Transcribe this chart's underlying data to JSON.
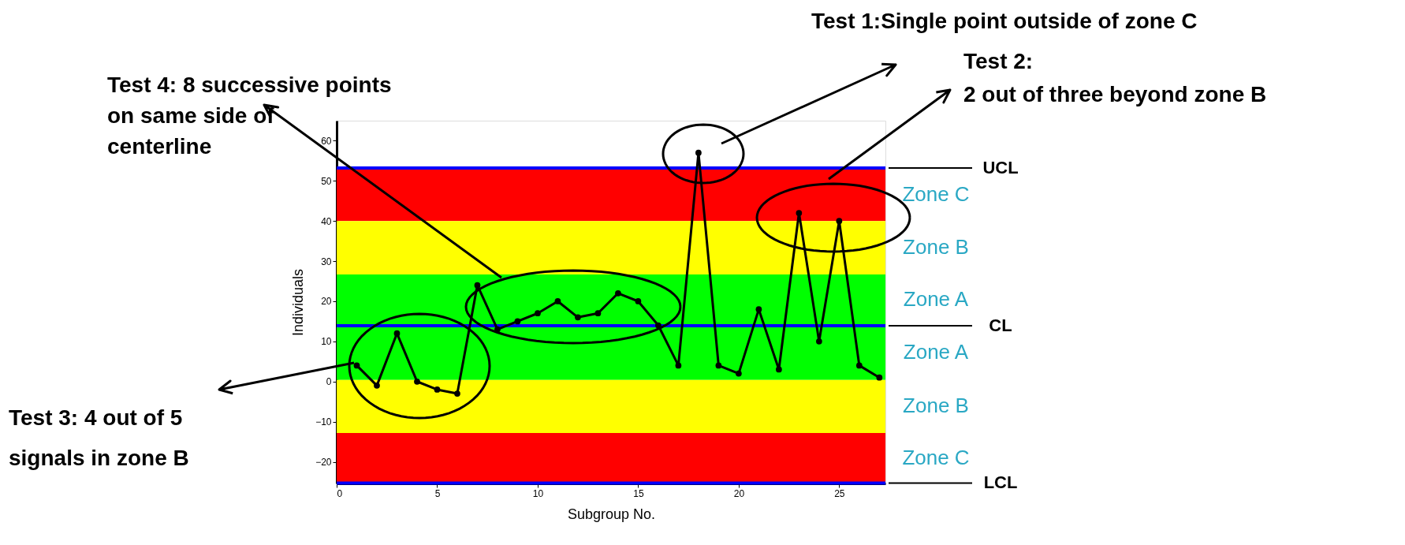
{
  "chart_data": {
    "type": "line",
    "xlabel": "Subgroup No.",
    "ylabel": "Individuals",
    "x": [
      1,
      2,
      3,
      4,
      5,
      6,
      7,
      8,
      9,
      10,
      11,
      12,
      13,
      14,
      15,
      16,
      17,
      18,
      19,
      20,
      21,
      22,
      23,
      24,
      25,
      26,
      27
    ],
    "series": [
      {
        "color": "#000000",
        "values": [
          4,
          -1,
          12,
          0,
          -2,
          -3,
          24,
          13,
          15,
          17,
          20,
          16,
          17,
          22,
          20,
          14,
          4,
          57,
          4,
          2,
          18,
          3,
          42,
          10,
          40,
          4,
          1
        ]
      }
    ],
    "marker": "circle",
    "line_style": "solid",
    "grid": false,
    "xlim": [
      0,
      27.3
    ],
    "ylim": [
      -25.4,
      65
    ],
    "xticks": [
      0,
      5,
      10,
      15,
      20,
      25
    ],
    "yticks": [
      -20,
      -10,
      0,
      10,
      20,
      30,
      40,
      50,
      60
    ],
    "ref_lines": [
      {
        "axis": "y",
        "value": 53.2,
        "label": "UCL",
        "color": "#0000ff"
      },
      {
        "axis": "y",
        "value": 13.9,
        "label": "CL",
        "color": "#0000ff"
      },
      {
        "axis": "y",
        "value": -25.3,
        "label": "LCL",
        "color": "#0000ff"
      }
    ],
    "bands": [
      {
        "axis": "y",
        "from": 40,
        "to": 53.2,
        "label": "Zone C",
        "color": "#ff0000"
      },
      {
        "axis": "y",
        "from": 26.7,
        "to": 40,
        "label": "Zone B",
        "color": "#ffff00"
      },
      {
        "axis": "y",
        "from": 13.9,
        "to": 26.7,
        "label": "Zone A",
        "color": "#00ff00"
      },
      {
        "axis": "y",
        "from": 0.4,
        "to": 13.9,
        "label": "Zone A",
        "color": "#00ff00"
      },
      {
        "axis": "y",
        "from": -12.8,
        "to": 0.4,
        "label": "Zone B",
        "color": "#ffff00"
      },
      {
        "axis": "y",
        "from": -25.3,
        "to": -12.8,
        "label": "Zone C",
        "color": "#ff0000"
      }
    ],
    "annotations": [
      "Test 1:Single point outside of zone C",
      "Test 2:\n2 out of three beyond zone B",
      "Test 3: 4 out of 5\nsignals in  zone B",
      "Test 4: 8 successive points\non same side of\ncenterline"
    ]
  }
}
